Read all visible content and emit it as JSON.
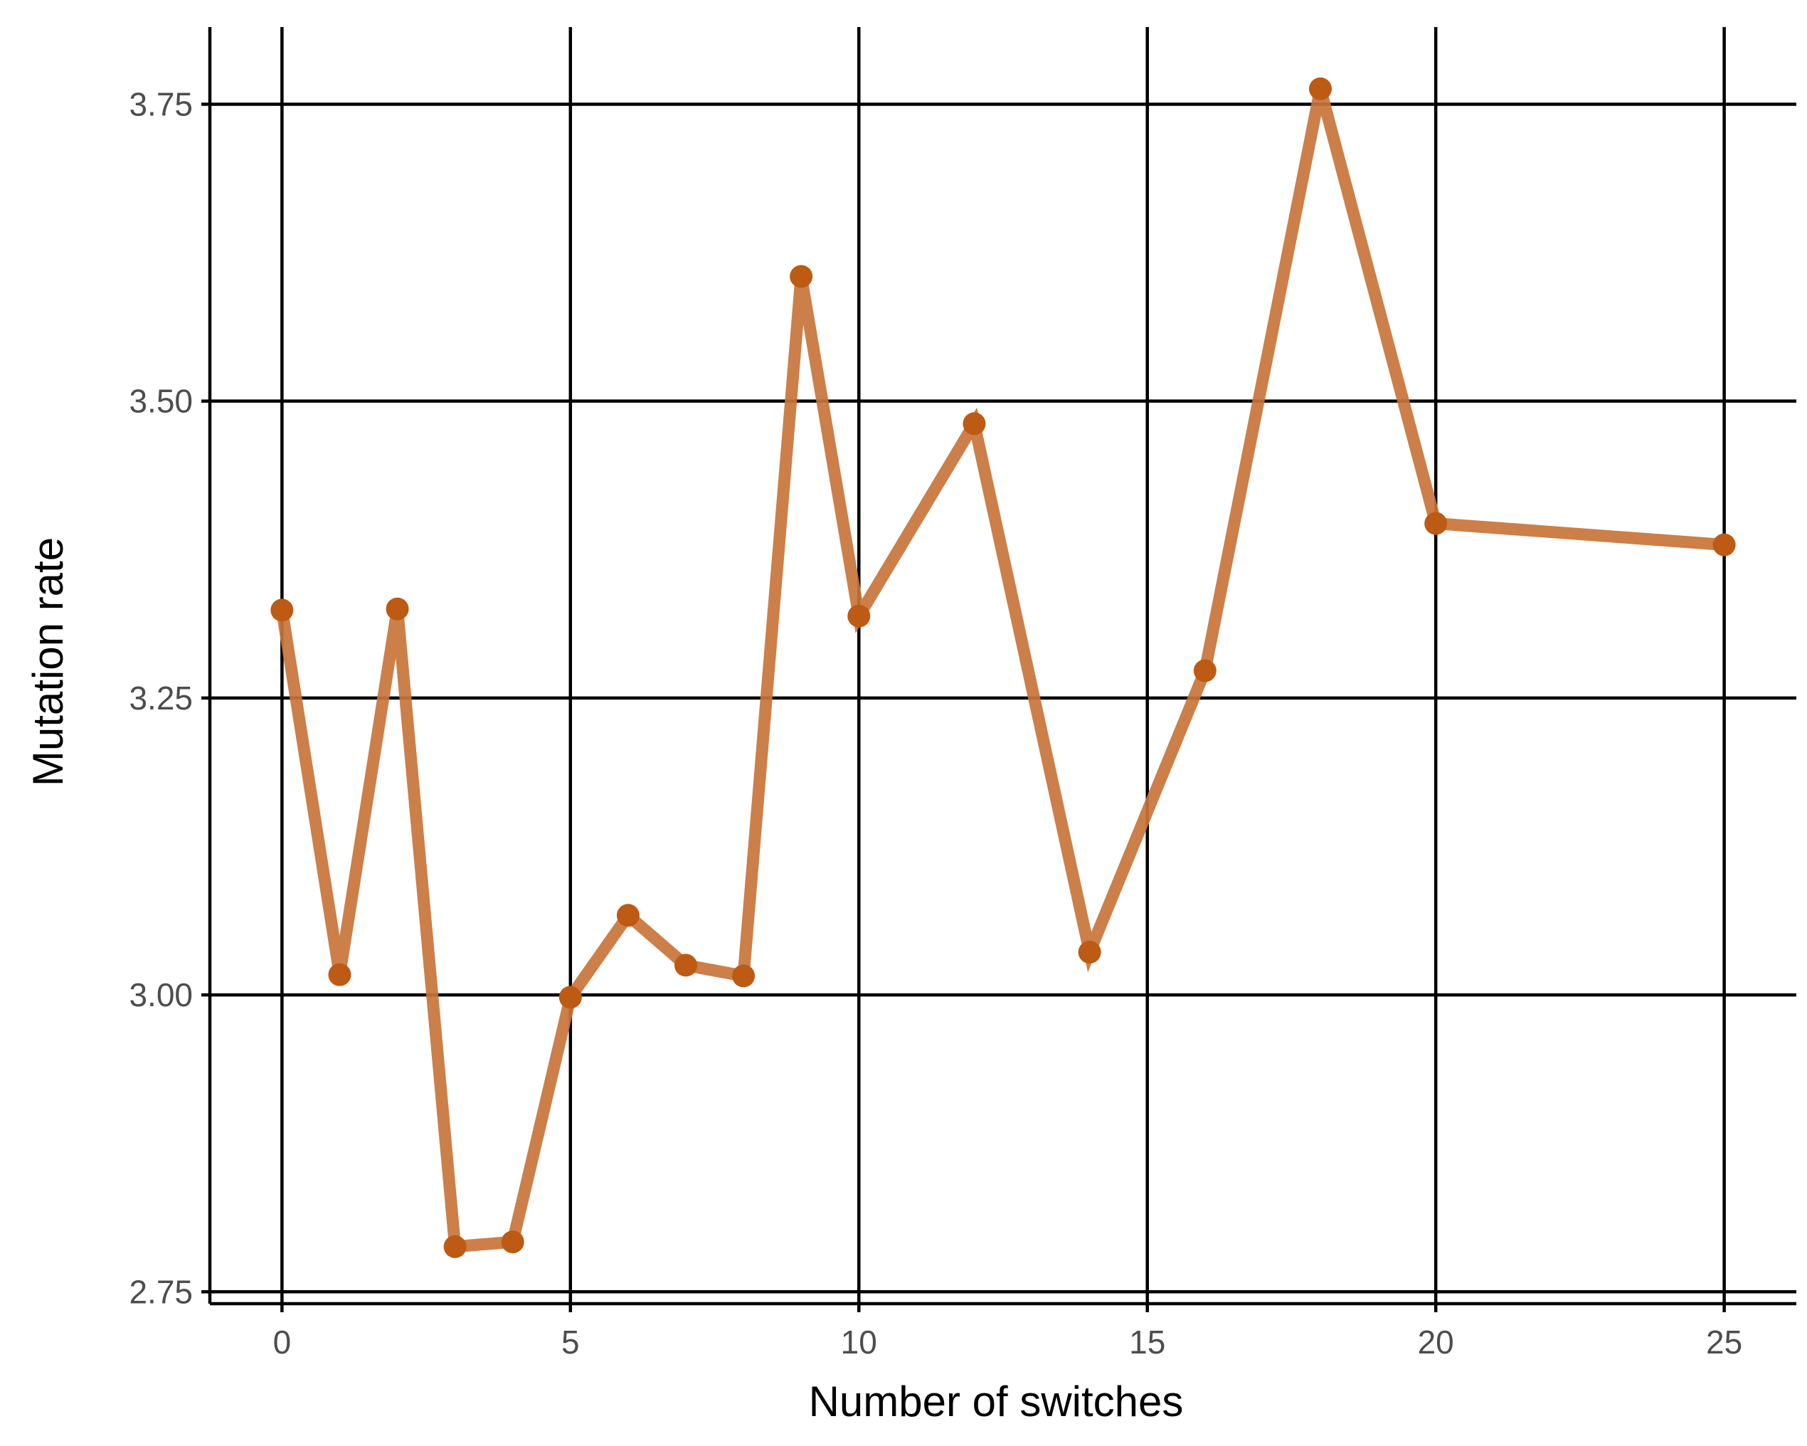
{
  "chart_data": {
    "type": "line",
    "title": "",
    "xlabel": "Number of switches",
    "ylabel": "Mutation rate",
    "xlim": [
      -1.25,
      26.25
    ],
    "ylim": [
      2.74,
      3.815
    ],
    "x_ticks": [
      0,
      5,
      10,
      15,
      20,
      25
    ],
    "x_tick_labels": [
      "0",
      "5",
      "10",
      "15",
      "20",
      "25"
    ],
    "y_ticks": [
      2.75,
      3.0,
      3.25,
      3.5,
      3.75
    ],
    "y_tick_labels": [
      "2.75",
      "3.00",
      "3.25",
      "3.50",
      "3.75"
    ],
    "grid": true,
    "legend": "none",
    "series": [
      {
        "x": [
          0,
          1,
          2,
          3,
          4,
          5,
          6,
          7,
          8,
          9,
          10,
          12,
          14,
          16,
          18,
          20,
          25
        ],
        "y": [
          3.324,
          3.017,
          3.325,
          2.788,
          2.792,
          2.998,
          3.067,
          3.025,
          3.016,
          3.605,
          3.319,
          3.481,
          3.036,
          3.273,
          3.763,
          3.397,
          3.379
        ]
      }
    ],
    "colors": {
      "line": "#c8743a",
      "point": "#bd5a13",
      "grid": "#000000",
      "axis": "#000000"
    }
  }
}
